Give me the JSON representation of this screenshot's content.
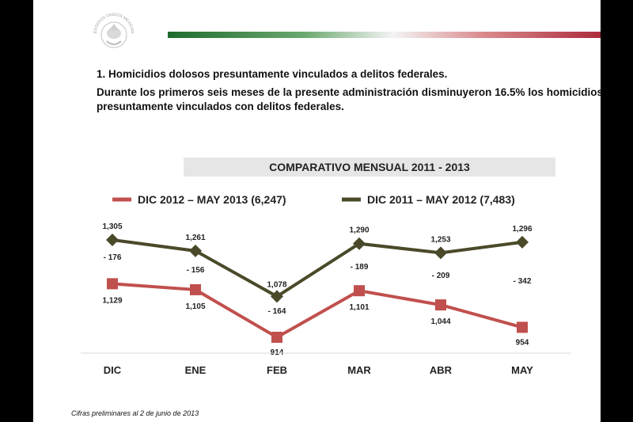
{
  "header": {
    "seal_text": "ESTADOS UNIDOS MEXICANOS",
    "point_1": "1.  Homicidios dolosos presuntamente vinculados a delitos federales.",
    "summary": "Durante los primeros seis meses de la presente administración disminuyeron 16.5% los homicidios presuntamente vinculados con delitos federales."
  },
  "colors": {
    "green": "#2e7d32",
    "red_flag": "#b3282d",
    "series_recent": "#c0504d",
    "series_previous": "#4a4a2a"
  },
  "chart_data": {
    "type": "line",
    "title": "COMPARATIVO MENSUAL 2011 - 2013",
    "categories": [
      "DIC",
      "ENE",
      "FEB",
      "MAR",
      "ABR",
      "MAY"
    ],
    "series": [
      {
        "name": "DIC 2012 – MAY 2013 (6,247)",
        "color": "#c0504d",
        "marker": "square",
        "values": [
          1129,
          1105,
          914,
          1101,
          1044,
          954
        ],
        "labels": [
          "1,129",
          "1,105",
          "914",
          "1,101",
          "1,044",
          "954"
        ]
      },
      {
        "name": "DIC 2011 – MAY 2012 (7,483)",
        "color": "#4a4a2a",
        "marker": "diamond",
        "values": [
          1305,
          1261,
          1078,
          1290,
          1253,
          1296
        ],
        "labels": [
          "1,305",
          "1,261",
          "1,078",
          "1,290",
          "1,253",
          "1,296"
        ]
      }
    ],
    "differences": [
      "- 176",
      "- 156",
      "- 164",
      "- 189",
      "- 209",
      "- 342"
    ],
    "legend": "top",
    "grid": false
  },
  "footnote": "Cifras preliminares al 2 de junio de 2013"
}
